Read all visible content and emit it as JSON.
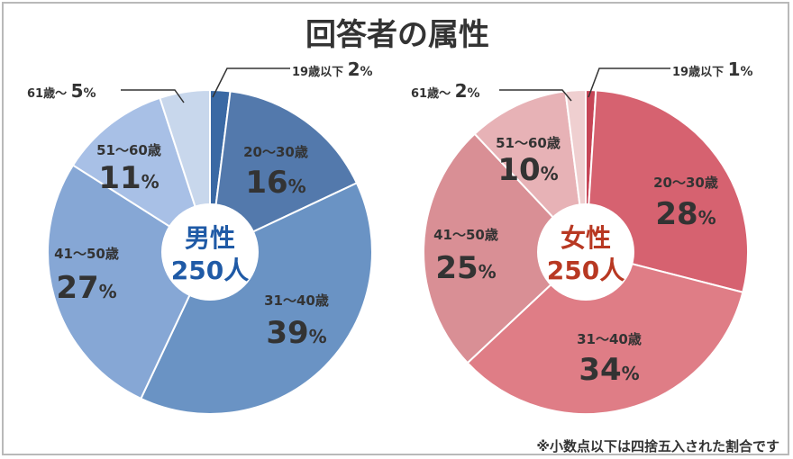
{
  "title": "回答者の属性",
  "footnote": "※小数点以下は四捨五入された割合です",
  "chart_data": [
    {
      "type": "pie",
      "center_label": "男性",
      "center_value": "250人",
      "center_color": "#1f5aa6",
      "slices": [
        {
          "label": "19歳以下",
          "value": 2,
          "display": "2",
          "color": "#3a69a4"
        },
        {
          "label": "20～30歳",
          "value": 16,
          "display": "16",
          "color": "#5379ac"
        },
        {
          "label": "31～40歳",
          "value": 39,
          "display": "39",
          "color": "#6a93c4"
        },
        {
          "label": "41～50歳",
          "value": 27,
          "display": "27",
          "color": "#86a7d5"
        },
        {
          "label": "51～60歳",
          "value": 11,
          "display": "11",
          "color": "#a8c0e6"
        },
        {
          "label": "61歳～",
          "value": 5,
          "display": "5",
          "color": "#c8d7ec"
        }
      ]
    },
    {
      "type": "pie",
      "center_label": "女性",
      "center_value": "250人",
      "center_color": "#b83822",
      "slices": [
        {
          "label": "19歳以下",
          "value": 1,
          "display": "1",
          "color": "#c64556"
        },
        {
          "label": "20～30歳",
          "value": 28,
          "display": "28",
          "color": "#d66270"
        },
        {
          "label": "31～40歳",
          "value": 34,
          "display": "34",
          "color": "#df7d86"
        },
        {
          "label": "41～50歳",
          "value": 25,
          "display": "25",
          "color": "#d98f95"
        },
        {
          "label": "51～60歳",
          "value": 10,
          "display": "10",
          "color": "#e7b2b6"
        },
        {
          "label": "61歳～",
          "value": 2,
          "display": "2",
          "color": "#efcfd0"
        }
      ]
    }
  ],
  "percent_sign": "%"
}
